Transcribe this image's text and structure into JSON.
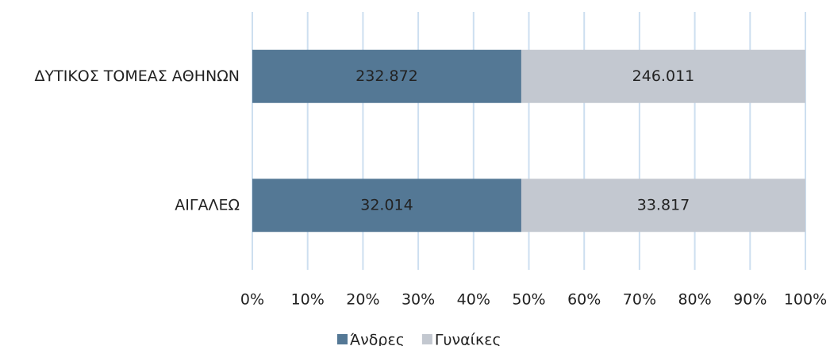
{
  "chart_data": {
    "type": "bar",
    "orientation": "horizontal",
    "stacking": "percent",
    "categories": [
      "ΔΥΤΙΚΟΣ ΤΟΜΕΑΣ ΑΘΗΝΩΝ",
      "ΑΙΓΑΛΕΩ"
    ],
    "series": [
      {
        "name": "Άνδρες",
        "color": "#547895",
        "values": [
          232872,
          32014
        ],
        "value_labels": [
          "232.872",
          "32.014"
        ]
      },
      {
        "name": "Γυναίκες",
        "color": "#c3c8d0",
        "values": [
          246011,
          33817
        ],
        "value_labels": [
          "246.011",
          "33.817"
        ]
      }
    ],
    "xlim": [
      0,
      100
    ],
    "xticks": [
      {
        "value": 0,
        "label": "0%"
      },
      {
        "value": 10,
        "label": "10%"
      },
      {
        "value": 20,
        "label": "20%"
      },
      {
        "value": 30,
        "label": "30%"
      },
      {
        "value": 40,
        "label": "40%"
      },
      {
        "value": 50,
        "label": "50%"
      },
      {
        "value": 60,
        "label": "60%"
      },
      {
        "value": 70,
        "label": "70%"
      },
      {
        "value": 80,
        "label": "80%"
      },
      {
        "value": 90,
        "label": "90%"
      },
      {
        "value": 100,
        "label": "100%"
      }
    ],
    "grid": true,
    "grid_color": "#cddff0",
    "legend": "bottom"
  }
}
